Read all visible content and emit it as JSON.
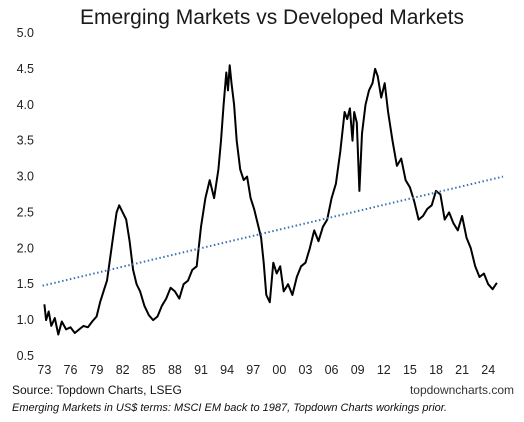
{
  "chart_data": {
    "type": "line",
    "title": "Emerging Markets vs Developed Markets",
    "xlabel": "",
    "ylabel": "",
    "ylim": [
      0.5,
      5.0
    ],
    "xlim": [
      1972.5,
      2026.5
    ],
    "y_ticks": [
      "0.5",
      "1.0",
      "1.5",
      "2.0",
      "2.5",
      "3.0",
      "3.5",
      "4.0",
      "4.5",
      "5.0"
    ],
    "x_ticks": [
      "73",
      "76",
      "79",
      "82",
      "85",
      "88",
      "91",
      "94",
      "97",
      "00",
      "03",
      "06",
      "09",
      "12",
      "15",
      "18",
      "21",
      "24"
    ],
    "grid": false,
    "legend": "none",
    "series": [
      {
        "color": "#000000",
        "style": "solid",
        "x": [
          1973.0,
          1973.2,
          1973.5,
          1973.8,
          1974.2,
          1974.6,
          1975.0,
          1975.5,
          1976.0,
          1976.5,
          1977.0,
          1977.5,
          1978.0,
          1978.5,
          1979.0,
          1979.4,
          1979.8,
          1980.2,
          1980.6,
          1981.0,
          1981.3,
          1981.6,
          1982.0,
          1982.4,
          1982.8,
          1983.2,
          1983.6,
          1984.0,
          1984.5,
          1985.0,
          1985.5,
          1986.0,
          1986.5,
          1987.0,
          1987.5,
          1988.0,
          1988.5,
          1989.0,
          1989.5,
          1990.0,
          1990.5,
          1991.0,
          1991.5,
          1992.0,
          1992.5,
          1993.0,
          1993.3,
          1993.6,
          1993.9,
          1994.1,
          1994.3,
          1994.5,
          1994.8,
          1995.1,
          1995.5,
          1995.9,
          1996.3,
          1996.7,
          1997.1,
          1997.5,
          1997.9,
          1998.2,
          1998.5,
          1998.9,
          1999.3,
          1999.7,
          2000.1,
          2000.5,
          2001.0,
          2001.5,
          2002.0,
          2002.5,
          2003.0,
          2003.5,
          2004.0,
          2004.5,
          2005.0,
          2005.5,
          2006.0,
          2006.5,
          2007.0,
          2007.5,
          2007.8,
          2008.1,
          2008.4,
          2008.6,
          2008.9,
          2009.2,
          2009.5,
          2009.9,
          2010.3,
          2010.7,
          2011.0,
          2011.3,
          2011.7,
          2012.1,
          2012.5,
          2013.0,
          2013.5,
          2014.0,
          2014.5,
          2015.0,
          2015.5,
          2016.0,
          2016.5,
          2017.0,
          2017.5,
          2018.0,
          2018.5,
          2019.0,
          2019.5,
          2020.0,
          2020.5,
          2021.0,
          2021.5,
          2022.0,
          2022.5,
          2023.0,
          2023.5,
          2024.0,
          2024.5,
          2025.0
        ],
        "y": [
          1.22,
          1.0,
          1.12,
          0.92,
          1.03,
          0.8,
          0.98,
          0.87,
          0.9,
          0.82,
          0.87,
          0.92,
          0.9,
          0.98,
          1.05,
          1.25,
          1.4,
          1.55,
          1.9,
          2.25,
          2.5,
          2.6,
          2.5,
          2.4,
          2.1,
          1.7,
          1.5,
          1.4,
          1.2,
          1.07,
          1.0,
          1.05,
          1.2,
          1.3,
          1.45,
          1.4,
          1.3,
          1.5,
          1.55,
          1.7,
          1.75,
          2.3,
          2.7,
          2.95,
          2.7,
          3.1,
          3.5,
          4.0,
          4.45,
          4.2,
          4.55,
          4.3,
          4.0,
          3.5,
          3.1,
          2.95,
          3.0,
          2.7,
          2.55,
          2.35,
          2.15,
          1.8,
          1.35,
          1.25,
          1.8,
          1.65,
          1.75,
          1.4,
          1.5,
          1.35,
          1.6,
          1.75,
          1.8,
          2.0,
          2.25,
          2.1,
          2.3,
          2.4,
          2.7,
          2.9,
          3.35,
          3.9,
          3.8,
          3.95,
          3.5,
          3.9,
          3.75,
          2.8,
          3.6,
          4.0,
          4.2,
          4.3,
          4.5,
          4.4,
          4.1,
          4.3,
          3.9,
          3.5,
          3.15,
          3.25,
          2.95,
          2.85,
          2.65,
          2.4,
          2.45,
          2.55,
          2.6,
          2.8,
          2.75,
          2.4,
          2.5,
          2.35,
          2.25,
          2.45,
          2.15,
          2.0,
          1.75,
          1.6,
          1.65,
          1.5,
          1.43,
          1.52
        ]
      },
      {
        "color": "#3e6fb5",
        "style": "dotted",
        "x": [
          1972.8,
          2025.7
        ],
        "y": [
          1.48,
          3.0
        ]
      }
    ]
  },
  "source": "Source: Topdown Charts, LSEG",
  "brand": "topdowncharts.com",
  "note": "Emerging Markets in US$ terms: MSCI EM back to 1987, Topdown Charts workings prior."
}
